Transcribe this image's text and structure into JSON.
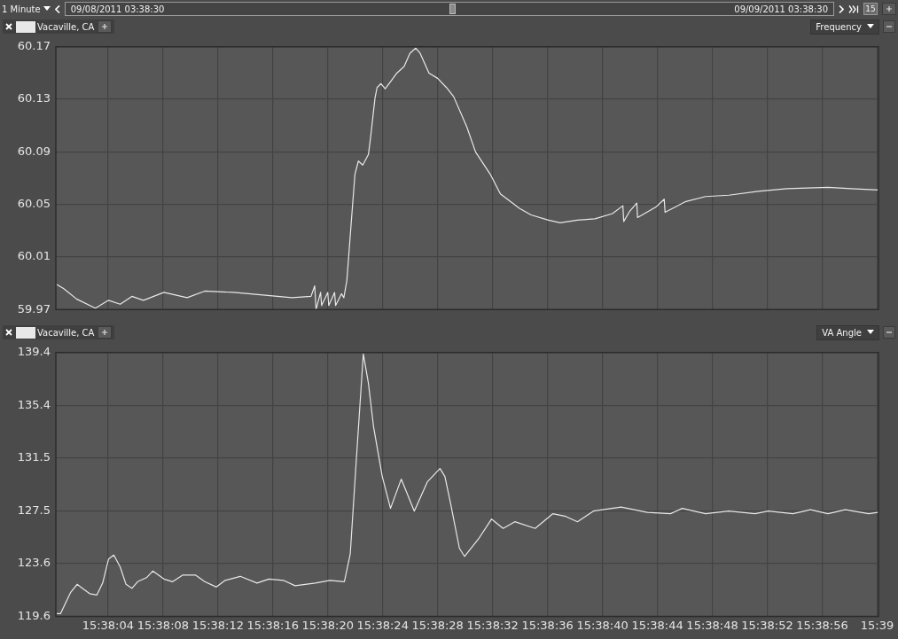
{
  "chart_data": [
    {
      "type": "line",
      "ylabel": "Frequency",
      "legend": "top left",
      "grid": true,
      "marker": "none",
      "line_style": "solid",
      "tick_labels": "y",
      "annotations": [
        "1 Minute",
        "09/08/2011 03:38:30",
        "09/09/2011 03:38:30",
        "15"
      ],
      "xlim": [
        15.633389,
        15.650028
      ],
      "xticks": [
        {
          "value": 15.634444,
          "label": null
        },
        {
          "value": 15.635556,
          "label": null
        },
        {
          "value": 15.636667,
          "label": null
        },
        {
          "value": 15.637778,
          "label": null
        },
        {
          "value": 15.638889,
          "label": null
        },
        {
          "value": 15.64,
          "label": null
        },
        {
          "value": 15.641111,
          "label": null
        },
        {
          "value": 15.642222,
          "label": null
        },
        {
          "value": 15.643333,
          "label": null
        },
        {
          "value": 15.644444,
          "label": null
        },
        {
          "value": 15.645556,
          "label": null
        },
        {
          "value": 15.646667,
          "label": null
        },
        {
          "value": 15.647778,
          "label": null
        },
        {
          "value": 15.648889,
          "label": null
        },
        {
          "value": 15.65,
          "label": null
        }
      ],
      "ylim": [
        59.97,
        60.17
      ],
      "yticks": [
        59.97,
        60.01,
        60.05,
        60.09,
        60.13,
        60.17
      ],
      "series": [
        {
          "name": "Vacaville, CA",
          "color": "#e8e8e8",
          "x": [
            15.633408,
            15.633544,
            15.633808,
            15.634189,
            15.634455,
            15.634691,
            15.634927,
            15.635161,
            15.635575,
            15.636044,
            15.6364,
            15.636989,
            15.637577,
            15.638166,
            15.63855,
            15.638625,
            15.638652,
            15.638744,
            15.638764,
            15.638889,
            15.638908,
            15.639027,
            15.639047,
            15.639166,
            15.639214,
            15.639275,
            15.639361,
            15.639439,
            15.639508,
            15.639597,
            15.639711,
            15.639755,
            15.639844,
            15.639886,
            15.639964,
            15.64005,
            15.640169,
            15.640286,
            15.640433,
            15.64055,
            15.640669,
            15.640758,
            15.640936,
            15.641111,
            15.641289,
            15.641436,
            15.641702,
            15.641877,
            15.642175,
            15.64238,
            15.642764,
            15.643,
            15.643352,
            15.643589,
            15.643941,
            15.644294,
            15.644647,
            15.644858,
            15.644875,
            15.645,
            15.645139,
            15.645155,
            15.645527,
            15.645694,
            15.645711,
            15.646116,
            15.64653,
            15.647,
            15.647589,
            15.648177,
            15.649005,
            15.649475,
            15.650016
          ],
          "values": [
            59.989,
            59.986,
            59.978,
            59.971,
            59.977,
            59.974,
            59.98,
            59.977,
            59.983,
            59.979,
            59.984,
            59.983,
            59.981,
            59.979,
            59.98,
            59.988,
            59.97,
            59.983,
            59.973,
            59.983,
            59.973,
            59.983,
            59.973,
            59.982,
            59.979,
            59.992,
            60.035,
            60.073,
            60.083,
            60.08,
            60.088,
            60.101,
            60.131,
            60.139,
            60.142,
            60.138,
            60.144,
            60.15,
            60.155,
            60.165,
            60.169,
            60.165,
            60.15,
            60.146,
            60.139,
            60.132,
            60.109,
            60.09,
            60.073,
            60.058,
            60.047,
            60.042,
            60.038,
            60.036,
            60.038,
            60.039,
            60.043,
            60.049,
            60.037,
            60.045,
            60.051,
            60.04,
            60.048,
            60.054,
            60.044,
            60.052,
            60.056,
            60.057,
            60.06,
            60.062,
            60.063,
            60.062,
            60.061
          ]
        }
      ]
    },
    {
      "type": "line",
      "ylabel": "VA Angle",
      "legend": "top left",
      "grid": true,
      "marker": "none",
      "line_style": "solid",
      "xlim": [
        15.633389,
        15.650028
      ],
      "xticks": [
        {
          "value": 15.634444,
          "label": "15:38:04"
        },
        {
          "value": 15.635556,
          "label": "15:38:08"
        },
        {
          "value": 15.636667,
          "label": "15:38:12"
        },
        {
          "value": 15.637778,
          "label": "15:38:16"
        },
        {
          "value": 15.638889,
          "label": "15:38:20"
        },
        {
          "value": 15.64,
          "label": "15:38:24"
        },
        {
          "value": 15.641111,
          "label": "15:38:28"
        },
        {
          "value": 15.642222,
          "label": "15:38:32"
        },
        {
          "value": 15.643333,
          "label": "15:38:36"
        },
        {
          "value": 15.644444,
          "label": "15:38:40"
        },
        {
          "value": 15.645556,
          "label": "15:38:44"
        },
        {
          "value": 15.646667,
          "label": "15:38:48"
        },
        {
          "value": 15.647778,
          "label": "15:38:52"
        },
        {
          "value": 15.648889,
          "label": "15:38:56"
        },
        {
          "value": 15.65,
          "label": "15:39"
        }
      ],
      "ylim": [
        119.6,
        139.4
      ],
      "yticks": [
        119.6,
        {
          "value": 123.56,
          "label": "123.6"
        },
        {
          "value": 127.52,
          "label": "127.5"
        },
        {
          "value": 131.48,
          "label": "131.5"
        },
        {
          "value": 135.44,
          "label": "135.4"
        },
        139.4
      ],
      "series": [
        {
          "name": "Vacaville, CA",
          "color": "#e8e8e8",
          "x": [
            15.633408,
            15.633483,
            15.633689,
            15.633819,
            15.633925,
            15.634072,
            15.634219,
            15.634336,
            15.634455,
            15.634561,
            15.634691,
            15.634808,
            15.634927,
            15.635044,
            15.635222,
            15.63535,
            15.635575,
            15.635752,
            15.635958,
            15.636211,
            15.6364,
            15.636636,
            15.636814,
            15.637119,
            15.637458,
            15.637697,
            15.637991,
            15.638227,
            15.638639,
            15.638933,
            15.639225,
            15.639344,
            15.639464,
            15.639608,
            15.639711,
            15.639816,
            15.639991,
            15.640158,
            15.640375,
            15.640639,
            15.640905,
            15.641158,
            15.641258,
            15.641377,
            15.641552,
            15.641655,
            15.641936,
            15.642202,
            15.642436,
            15.642672,
            15.643083,
            15.643439,
            15.643702,
            15.643939,
            15.644261,
            15.644822,
            15.645352,
            15.645822,
            15.646058,
            15.64653,
            15.647,
            15.64753,
            15.647797,
            15.648297,
            15.648652,
            15.649005,
            15.649358,
            15.64983,
            15.650016
          ],
          "values": [
            119.8,
            119.8,
            121.4,
            122.0,
            121.7,
            121.3,
            121.2,
            122.1,
            123.9,
            124.2,
            123.3,
            122.0,
            121.7,
            122.2,
            122.5,
            123.0,
            122.4,
            122.2,
            122.7,
            122.7,
            122.2,
            121.8,
            122.3,
            122.6,
            122.1,
            122.4,
            122.3,
            121.9,
            122.1,
            122.3,
            122.2,
            124.3,
            131.2,
            139.3,
            137.1,
            133.8,
            130.1,
            127.7,
            129.9,
            127.5,
            129.7,
            130.7,
            130.1,
            128.0,
            124.7,
            124.1,
            125.4,
            126.9,
            126.2,
            126.7,
            126.2,
            127.3,
            127.1,
            126.7,
            127.5,
            127.8,
            127.4,
            127.3,
            127.7,
            127.3,
            127.5,
            127.3,
            127.5,
            127.3,
            127.6,
            127.3,
            127.6,
            127.3,
            127.4
          ]
        }
      ]
    }
  ]
}
